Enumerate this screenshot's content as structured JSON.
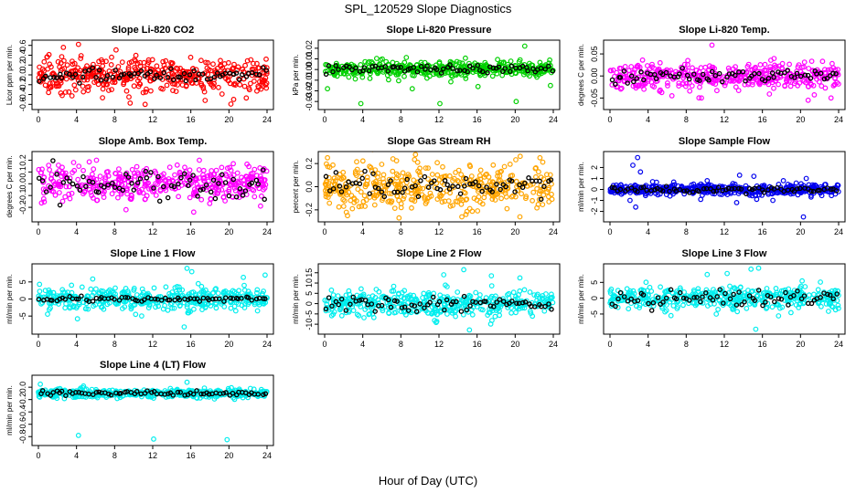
{
  "figure": {
    "title": "SPL_120529  Slope Diagnostics",
    "xlabel": "Hour of Day (UTC)"
  },
  "chart_data": [
    {
      "type": "scatter",
      "title": "Slope Li-820 CO2",
      "ylabel": "Licor ppm per min.",
      "color": "#ff0000",
      "xlim": [
        0,
        24
      ],
      "ylim": [
        -0.65,
        0.65
      ],
      "xticks": [
        0,
        4,
        8,
        12,
        16,
        20,
        24
      ],
      "yticks": [
        "-0.6",
        "-0.4",
        "-0.2",
        "0.0",
        "0.2",
        "0.4",
        "0.6"
      ],
      "ytick_values": [
        -0.6,
        -0.4,
        -0.2,
        0.0,
        0.2,
        0.4,
        0.6
      ],
      "spread": 0.17,
      "black_spread": 0.06,
      "center": 0.0,
      "outliers": [
        [
          4.2,
          0.62
        ],
        [
          11.2,
          -0.6
        ],
        [
          9.5,
          -0.45
        ],
        [
          17.5,
          -0.52
        ],
        [
          20.5,
          -0.5
        ],
        [
          2.5,
          -0.42
        ]
      ]
    },
    {
      "type": "scatter",
      "title": "Slope Li-820 Pressure",
      "ylabel": "kPa per min.",
      "color": "#00d000",
      "xlim": [
        0,
        24
      ],
      "ylim": [
        -0.035,
        0.025
      ],
      "xticks": [
        0,
        4,
        8,
        12,
        16,
        20,
        24
      ],
      "yticks": [
        "-0.03",
        "-0.02",
        "-0.01",
        "0.00",
        "0.01",
        "0.02"
      ],
      "ytick_values": [
        -0.03,
        -0.02,
        -0.01,
        0.0,
        0.01,
        0.02
      ],
      "spread": 0.004,
      "black_spread": 0.002,
      "center": 0.0005,
      "outliers": [
        [
          3.8,
          -0.032
        ],
        [
          12.1,
          -0.032
        ],
        [
          20.1,
          -0.03
        ],
        [
          21.0,
          0.022
        ],
        [
          0.3,
          -0.018
        ],
        [
          9.2,
          -0.018
        ],
        [
          16.1,
          -0.016
        ],
        [
          23.7,
          -0.015
        ]
      ]
    },
    {
      "type": "scatter",
      "title": "Slope Li-820 Temp.",
      "ylabel": "degrees C per min.",
      "color": "#ff00ff",
      "xlim": [
        0,
        24
      ],
      "ylim": [
        -0.07,
        0.075
      ],
      "xticks": [
        0,
        4,
        8,
        12,
        16,
        20,
        24
      ],
      "yticks": [
        "-0.05",
        "0.00",
        "0.05"
      ],
      "ytick_values": [
        -0.05,
        0.0,
        0.05
      ],
      "spread": 0.015,
      "black_spread": 0.008,
      "center": 0.0,
      "outliers": [
        [
          10.7,
          0.07
        ],
        [
          20.8,
          -0.055
        ],
        [
          23.2,
          -0.05
        ],
        [
          9.6,
          -0.05
        ],
        [
          6.5,
          -0.045
        ]
      ]
    },
    {
      "type": "scatter",
      "title": "Slope Amb. Box Temp.",
      "ylabel": "degrees C per min.",
      "color": "#ff00ff",
      "xlim": [
        0,
        24
      ],
      "ylim": [
        -0.3,
        0.25
      ],
      "xticks": [
        0,
        4,
        8,
        12,
        16,
        20,
        24
      ],
      "yticks": [
        "-0.2",
        "-0.1",
        "0.0",
        "0.1",
        "0.2"
      ],
      "ytick_values": [
        -0.2,
        -0.1,
        0.0,
        0.1,
        0.2
      ],
      "spread": 0.07,
      "black_spread": 0.06,
      "center": 0.0,
      "outliers": [
        [
          6.1,
          0.2
        ],
        [
          16.3,
          -0.24
        ],
        [
          9.2,
          -0.22
        ],
        [
          3.7,
          0.18
        ],
        [
          16.9,
          0.2
        ]
      ]
    },
    {
      "type": "scatter",
      "title": "Slope Gas Stream RH",
      "ylabel": "percent per min.",
      "color": "#ffa500",
      "xlim": [
        0,
        24
      ],
      "ylim": [
        -0.28,
        0.28
      ],
      "xticks": [
        0,
        4,
        8,
        12,
        16,
        20,
        24
      ],
      "yticks": [
        "-0.2",
        "0.0",
        "0.2"
      ],
      "ytick_values": [
        -0.2,
        0.0,
        0.2
      ],
      "spread": 0.1,
      "black_spread": 0.05,
      "center": 0.0,
      "outliers": [
        [
          0.3,
          0.25
        ],
        [
          7.8,
          -0.27
        ],
        [
          14.4,
          -0.26
        ],
        [
          20.5,
          -0.26
        ],
        [
          22.6,
          0.25
        ],
        [
          2.4,
          -0.25
        ]
      ]
    },
    {
      "type": "scatter",
      "title": "Slope Sample Flow",
      "ylabel": "ml/min per min.",
      "color": "#0000ee",
      "xlim": [
        0,
        24
      ],
      "ylim": [
        -2.7,
        3.2
      ],
      "xticks": [
        0,
        4,
        8,
        12,
        16,
        20,
        24
      ],
      "yticks": [
        "-2",
        "-1",
        "0",
        "1",
        "2"
      ],
      "ytick_values": [
        -2,
        -1,
        0,
        1,
        2
      ],
      "spread": 0.25,
      "black_spread": 0.15,
      "center": 0.0,
      "outliers": [
        [
          2.4,
          2.2
        ],
        [
          2.9,
          2.9
        ],
        [
          3.2,
          1.6
        ],
        [
          2.1,
          -1.0
        ],
        [
          2.7,
          -1.6
        ],
        [
          13.6,
          1.3
        ],
        [
          13.3,
          -1.2
        ],
        [
          15.1,
          1.2
        ],
        [
          15.4,
          -0.9
        ],
        [
          17.1,
          -1.0
        ],
        [
          18.2,
          0.8
        ],
        [
          20.3,
          -2.5
        ],
        [
          20.6,
          1.0
        ],
        [
          6.3,
          -0.6
        ],
        [
          10.2,
          0.8
        ]
      ]
    },
    {
      "type": "scatter",
      "title": "Slope Line 1 Flow",
      "ylabel": "ml/min per min.",
      "color": "#00eeee",
      "xlim": [
        0,
        24
      ],
      "ylim": [
        -9.5,
        9.5
      ],
      "xticks": [
        0,
        4,
        8,
        12,
        16,
        20,
        24
      ],
      "yticks": [
        "-5",
        "0",
        "5"
      ],
      "ytick_values": [
        -5,
        0,
        5
      ],
      "spread": 1.6,
      "black_spread": 0.3,
      "center": 0.0,
      "outliers": [
        [
          15.6,
          9.0
        ],
        [
          16.1,
          8.0
        ],
        [
          15.3,
          -8.2
        ],
        [
          10.2,
          -4.5
        ],
        [
          23.8,
          7.0
        ],
        [
          4.1,
          -5.8
        ]
      ]
    },
    {
      "type": "scatter",
      "title": "Slope Line 2 Flow",
      "ylabel": "ml/min per min.",
      "color": "#00eeee",
      "xlim": [
        0,
        24
      ],
      "ylim": [
        -13.5,
        18
      ],
      "xticks": [
        0,
        4,
        8,
        12,
        16,
        20,
        24
      ],
      "yticks": [
        "-10",
        "-5",
        "0",
        "5",
        "10",
        "15"
      ],
      "ytick_values": [
        -10,
        -5,
        0,
        5,
        10,
        15
      ],
      "spread": 3.0,
      "black_spread": 2.0,
      "center": 0.0,
      "outliers": [
        [
          14.6,
          16.5
        ],
        [
          15.2,
          -12.8
        ],
        [
          12.5,
          14.0
        ],
        [
          17.5,
          13.5
        ],
        [
          20.5,
          12.5
        ]
      ]
    },
    {
      "type": "scatter",
      "title": "Slope Line 3 Flow",
      "ylabel": "ml/min per min.",
      "color": "#00eeee",
      "xlim": [
        0,
        24
      ],
      "ylim": [
        -10.5,
        10
      ],
      "xticks": [
        0,
        4,
        8,
        12,
        16,
        20,
        24
      ],
      "yticks": [
        "-5",
        "0",
        "5"
      ],
      "ytick_values": [
        -5,
        0,
        5
      ],
      "spread": 1.8,
      "black_spread": 1.5,
      "center": 0.0,
      "outliers": [
        [
          14.8,
          9.2
        ],
        [
          15.3,
          -9.8
        ],
        [
          10.2,
          7.5
        ],
        [
          12.3,
          7.8
        ],
        [
          15.6,
          9.5
        ],
        [
          6.4,
          -5.5
        ]
      ]
    },
    {
      "type": "scatter",
      "title": "Slope Line 4 (LT) Flow",
      "ylabel": "ml/min per min.",
      "color": "#00eeee",
      "xlim": [
        0,
        24
      ],
      "ylim": [
        -0.9,
        0.15
      ],
      "xticks": [
        0,
        4,
        8,
        12,
        16,
        20,
        24
      ],
      "yticks": [
        "-0.8",
        "-0.6",
        "-0.4",
        "-0.2",
        "0.0"
      ],
      "ytick_values": [
        -0.8,
        -0.6,
        -0.4,
        -0.2,
        0.0
      ],
      "spread": 0.035,
      "black_spread": 0.02,
      "center": -0.1,
      "outliers": [
        [
          4.2,
          -0.78
        ],
        [
          12.1,
          -0.84
        ],
        [
          19.8,
          -0.85
        ],
        [
          15.6,
          0.08
        ],
        [
          0.2,
          0.05
        ]
      ]
    }
  ]
}
